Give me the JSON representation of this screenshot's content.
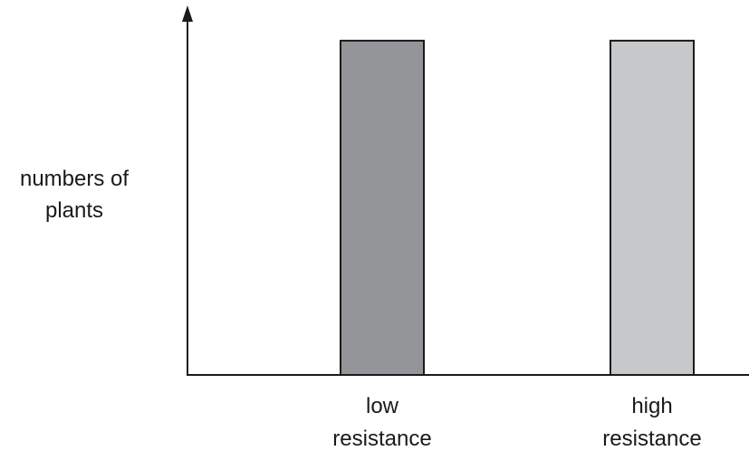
{
  "chart_data": {
    "type": "bar",
    "title": "",
    "xlabel": "",
    "ylabel": [
      "numbers of",
      "plants"
    ],
    "categories": [
      [
        "low",
        "resistance"
      ],
      [
        "high",
        "resistance"
      ]
    ],
    "values": [
      1,
      1
    ],
    "bar_colors": [
      "#939598",
      "#c7c8ca"
    ],
    "ylim": [
      0,
      1.1
    ],
    "grid": false,
    "legend": "none"
  }
}
